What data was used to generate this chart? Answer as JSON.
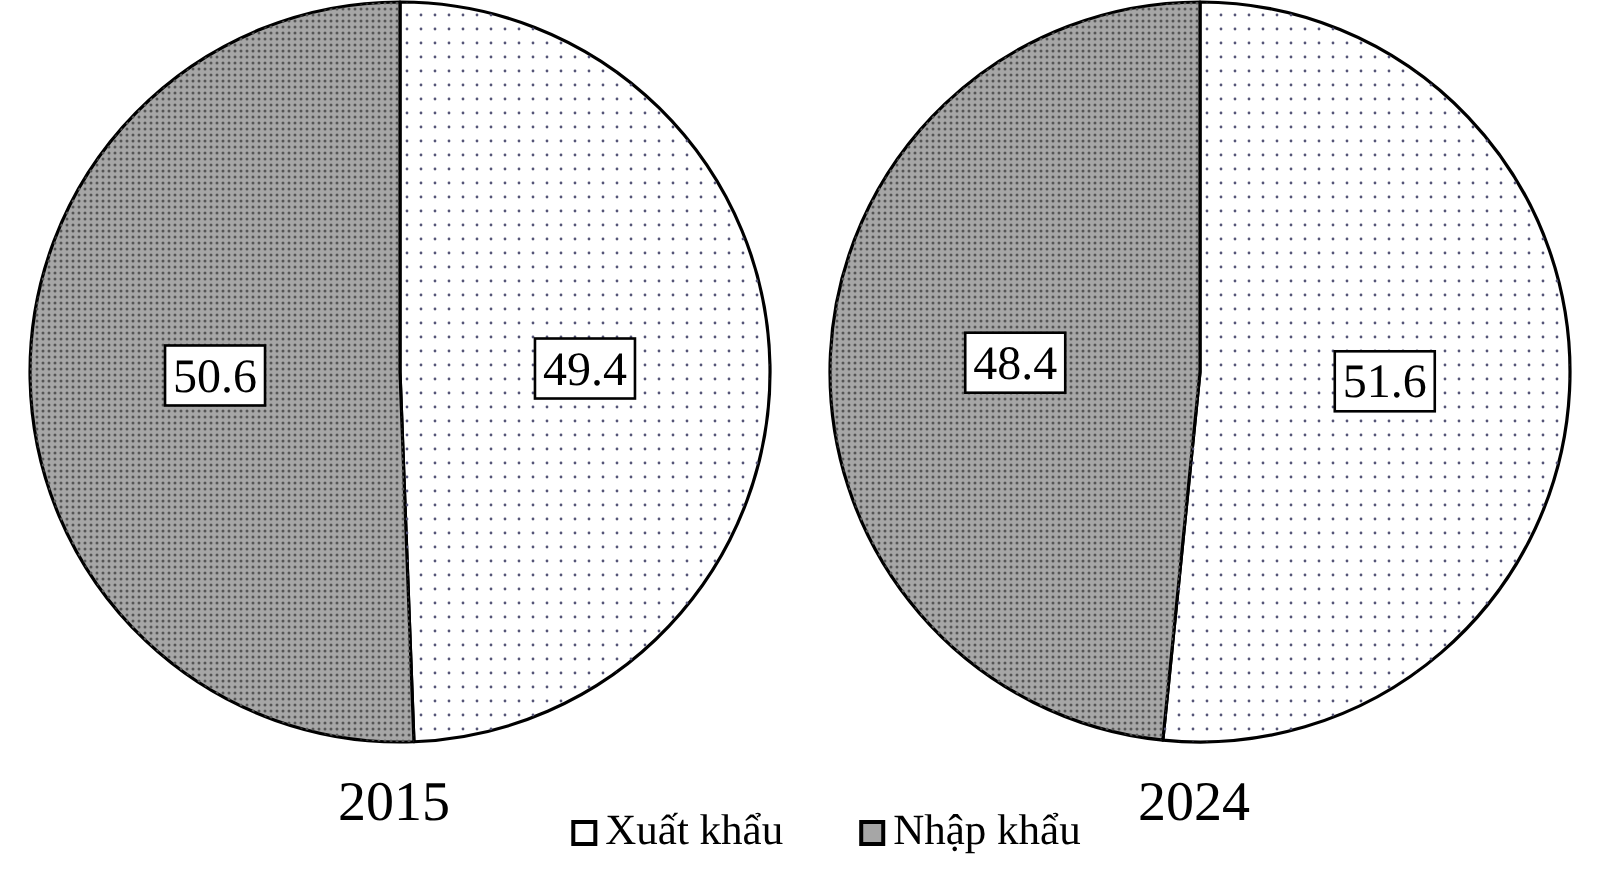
{
  "chart_data": {
    "type": "pie",
    "categories": [
      "Xuất khẩu",
      "Nhập khẩu"
    ],
    "colors": [
      "#ffffff",
      "#a6a6a6"
    ],
    "series": [
      {
        "name": "2015",
        "values": [
          49.4,
          50.6
        ]
      },
      {
        "name": "2024",
        "values": [
          51.6,
          48.4
        ]
      }
    ],
    "data_labels": true,
    "legend": "bottom"
  }
}
